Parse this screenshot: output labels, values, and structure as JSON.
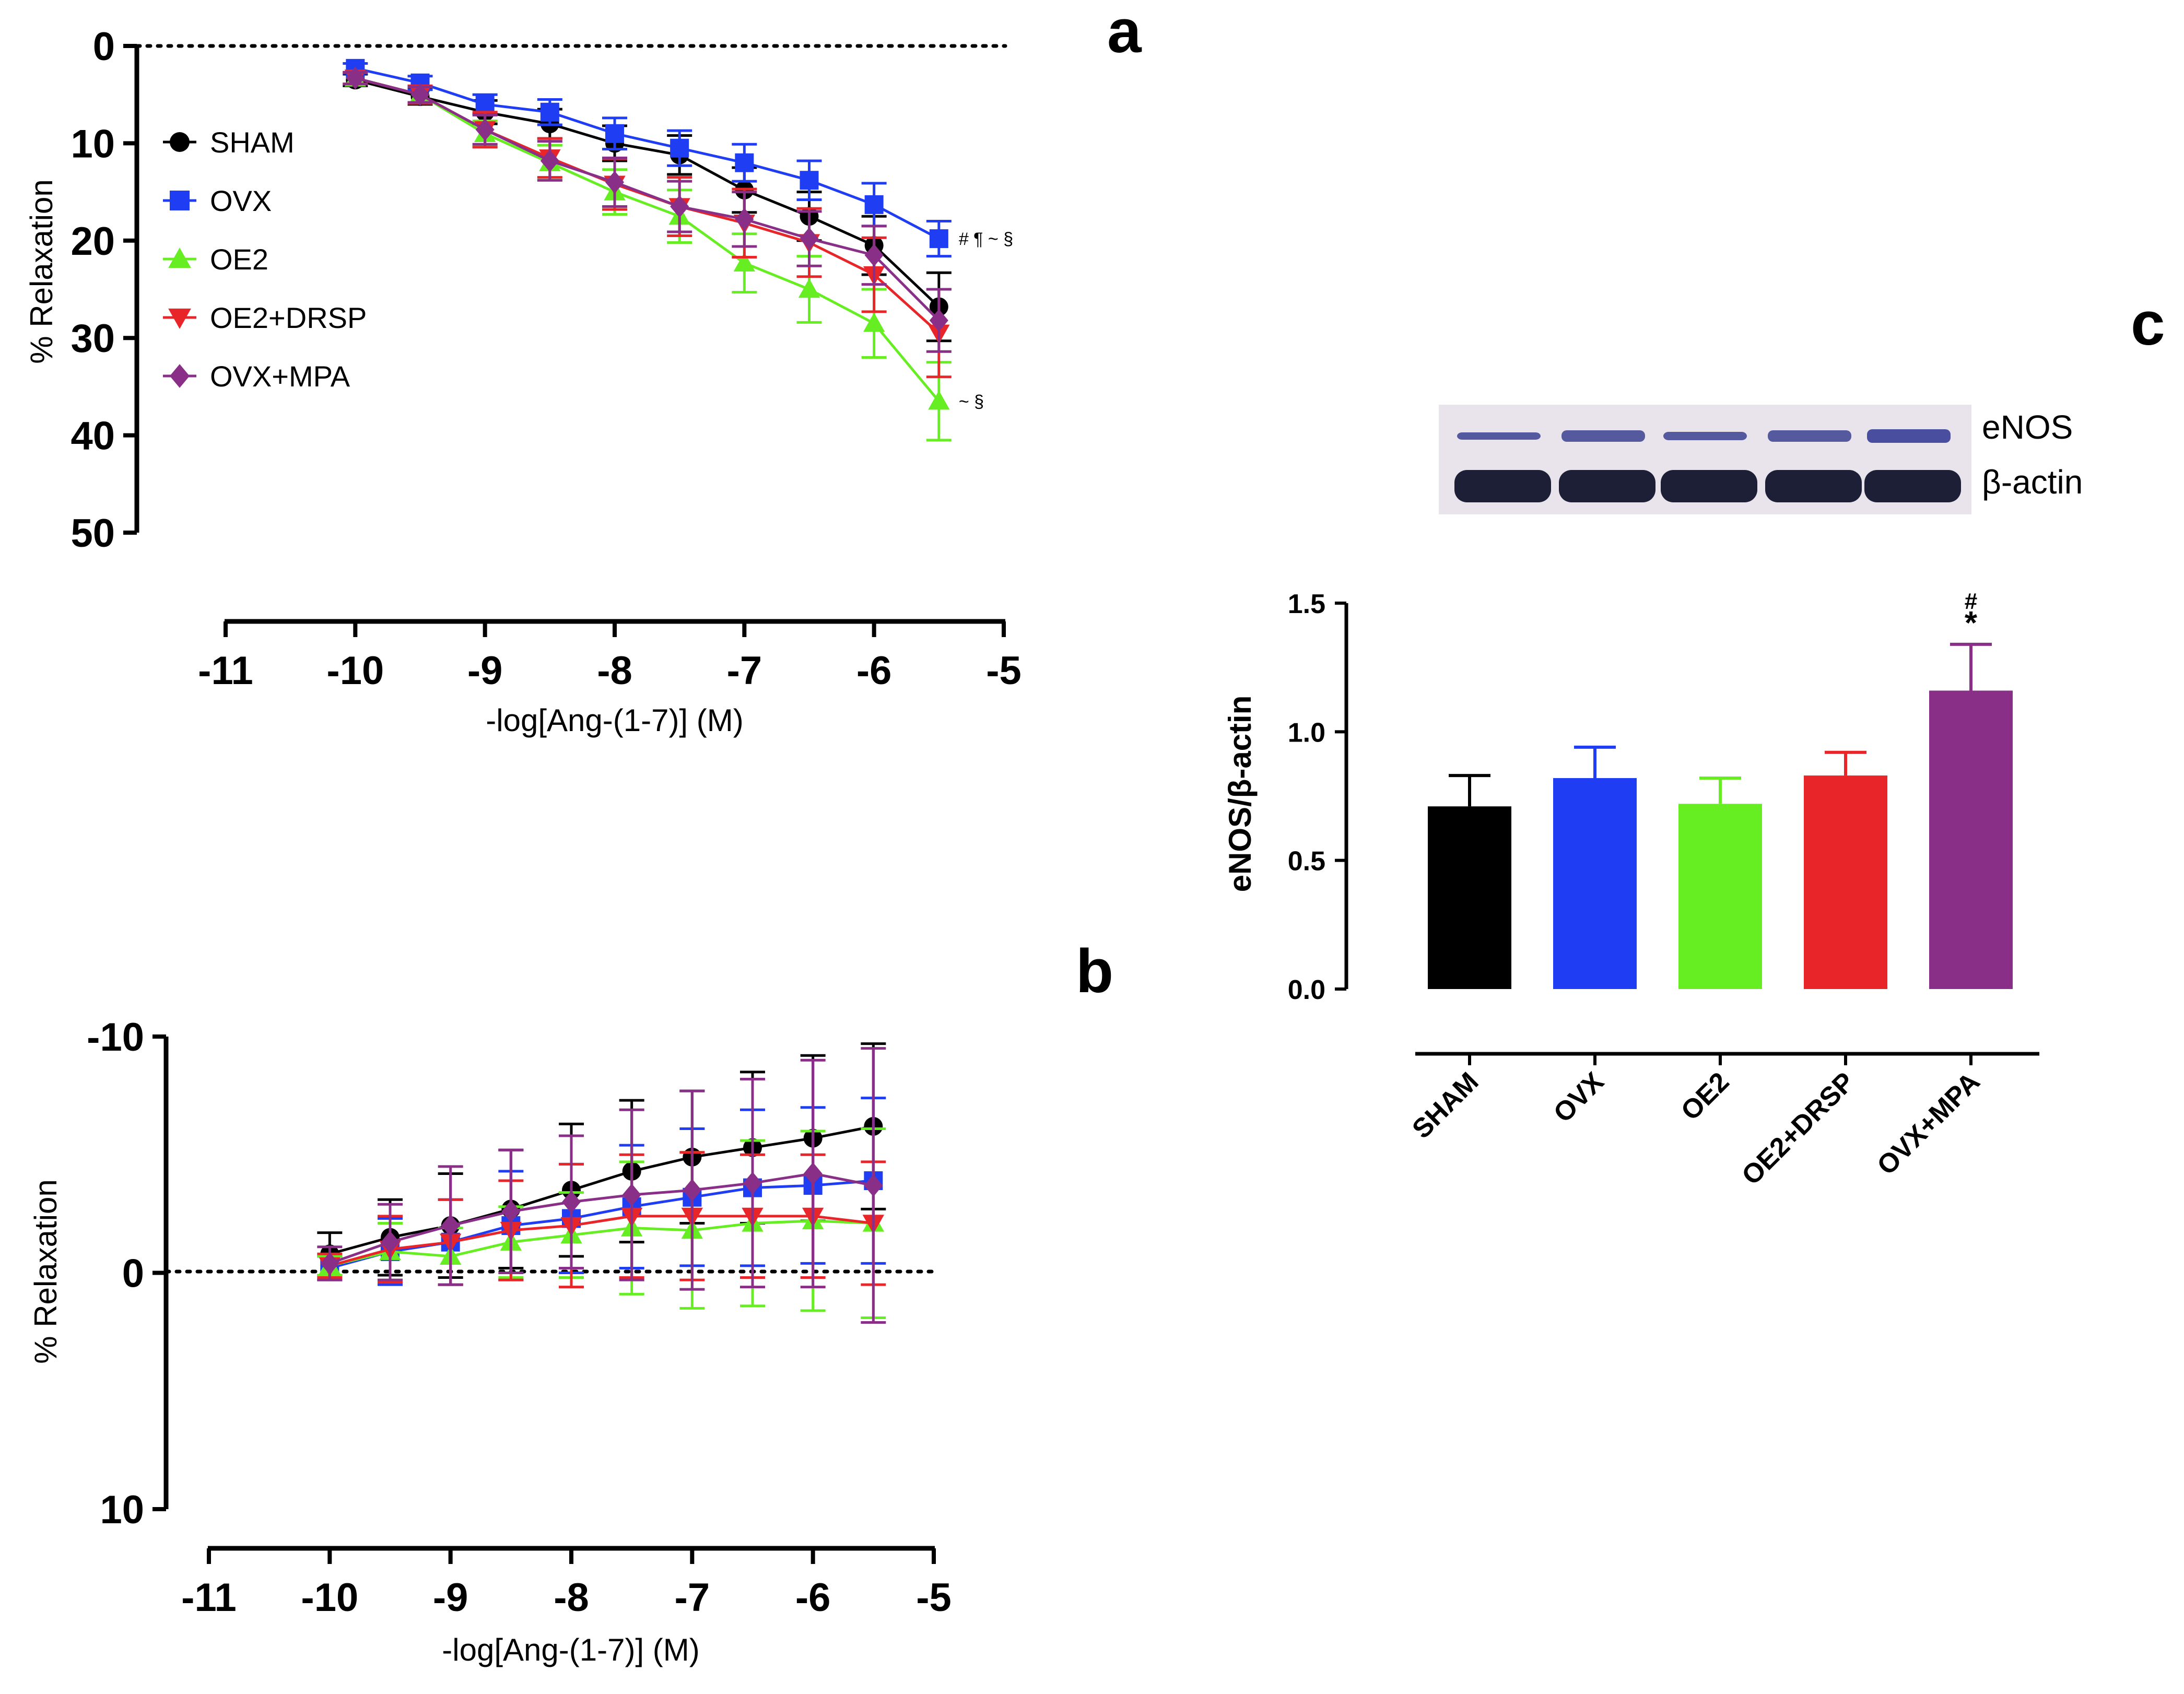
{
  "chart_data": [
    {
      "panel": "a",
      "type": "line",
      "xlabel": "-log[Ang-(1-7)] (M)",
      "ylabel": "% Relaxation",
      "xlim": [
        -11,
        -5
      ],
      "ylim": [
        0,
        50
      ],
      "y_inverted": true,
      "xticks": [
        "-11",
        "-10",
        "-9",
        "-8",
        "-7",
        "-6",
        "-5"
      ],
      "yticks": [
        "0",
        "10",
        "20",
        "30",
        "40",
        "50"
      ],
      "reference_line_y": 0,
      "x": [
        -10,
        -9.5,
        -9,
        -8.5,
        -8,
        -7.5,
        -7,
        -6.5,
        -6,
        -5.5
      ],
      "series": [
        {
          "name": "SHAM",
          "color": "#000000",
          "marker": "circle",
          "values": [
            3.5,
            5.2,
            6.8,
            8.0,
            10.0,
            11.2,
            14.8,
            17.5,
            20.5,
            26.8
          ],
          "errors": [
            0.6,
            0.8,
            1.2,
            1.5,
            1.8,
            2.0,
            2.3,
            2.5,
            3.0,
            3.5
          ]
        },
        {
          "name": "OVX",
          "color": "#1f3df2",
          "marker": "square",
          "values": [
            2.3,
            3.8,
            6.0,
            6.8,
            9.0,
            10.5,
            12.0,
            13.8,
            16.3,
            19.8
          ],
          "errors": [
            0.5,
            0.7,
            1.0,
            1.3,
            1.6,
            1.8,
            1.9,
            2.0,
            2.2,
            1.8
          ]
        },
        {
          "name": "OE2",
          "color": "#66ee22",
          "marker": "triangle-up",
          "values": [
            3.3,
            5.0,
            9.0,
            12.0,
            15.0,
            17.5,
            22.3,
            25.0,
            28.5,
            36.5
          ],
          "errors": [
            0.6,
            0.8,
            1.3,
            1.8,
            2.3,
            2.7,
            3.0,
            3.4,
            3.5,
            4.0
          ]
        },
        {
          "name": "OE2+DRSP",
          "color": "#e8262a",
          "marker": "triangle-down",
          "values": [
            3.3,
            5.0,
            8.6,
            11.5,
            14.2,
            16.5,
            18.2,
            20.2,
            23.5,
            29.5
          ],
          "errors": [
            0.6,
            0.9,
            1.8,
            2.0,
            2.6,
            3.0,
            3.5,
            3.5,
            3.8,
            4.5
          ]
        },
        {
          "name": "OVX+MPA",
          "color": "#8a2f88",
          "marker": "diamond",
          "values": [
            3.3,
            5.0,
            8.6,
            11.8,
            14.0,
            16.5,
            17.8,
            19.8,
            21.5,
            28.2
          ],
          "errors": [
            0.6,
            0.8,
            1.5,
            2.0,
            2.5,
            2.6,
            2.8,
            2.8,
            3.0,
            3.2
          ]
        }
      ],
      "annotations": [
        {
          "text": "# ¶ ~ §",
          "series": "OVX",
          "x": -5.5
        },
        {
          "text": "~ §",
          "series": "OE2",
          "x": -5.5
        }
      ]
    },
    {
      "panel": "b",
      "type": "line",
      "xlabel": "-log[Ang-(1-7)] (M)",
      "ylabel": "% Relaxation",
      "xlim": [
        -11,
        -5
      ],
      "ylim": [
        10,
        -10
      ],
      "xticks": [
        "-11",
        "-10",
        "-9",
        "-8",
        "-7",
        "-6",
        "-5"
      ],
      "yticks": [
        "-10",
        "0",
        "10"
      ],
      "reference_line_y": 0,
      "x": [
        -10,
        -9.5,
        -9,
        -8.5,
        -8,
        -7.5,
        -7,
        -6.5,
        -6,
        -5.5
      ],
      "series": [
        {
          "name": "SHAM",
          "color": "#000000",
          "marker": "circle",
          "values": [
            -0.8,
            -1.5,
            -2.0,
            -2.7,
            -3.5,
            -4.3,
            -4.9,
            -5.3,
            -5.7,
            -6.2
          ],
          "errors": [
            0.9,
            1.6,
            2.2,
            2.5,
            2.8,
            3.0,
            2.8,
            3.2,
            3.5,
            3.5
          ]
        },
        {
          "name": "OVX",
          "color": "#1f3df2",
          "marker": "square",
          "values": [
            -0.2,
            -0.9,
            -1.3,
            -2.0,
            -2.3,
            -2.8,
            -3.2,
            -3.6,
            -3.7,
            -3.9
          ],
          "errors": [
            0.5,
            1.4,
            1.8,
            2.3,
            2.3,
            2.6,
            2.9,
            3.3,
            3.3,
            3.5
          ]
        },
        {
          "name": "OE2",
          "color": "#66ee22",
          "marker": "triangle-up",
          "values": [
            -0.3,
            -0.9,
            -0.7,
            -1.3,
            -1.6,
            -1.9,
            -1.8,
            -2.1,
            -2.2,
            -2.1
          ],
          "errors": [
            0.4,
            1.2,
            1.2,
            1.5,
            1.8,
            2.8,
            3.3,
            3.5,
            3.8,
            4.0
          ]
        },
        {
          "name": "OE2+DRSP",
          "color": "#e8262a",
          "marker": "triangle-down",
          "values": [
            -0.3,
            -1.0,
            -1.3,
            -1.8,
            -2.0,
            -2.4,
            -2.4,
            -2.4,
            -2.4,
            -2.1
          ],
          "errors": [
            0.5,
            1.4,
            1.8,
            2.1,
            2.6,
            2.6,
            2.7,
            2.6,
            2.6,
            2.6
          ]
        },
        {
          "name": "OVX+MPA",
          "color": "#8a2f88",
          "marker": "diamond",
          "values": [
            -0.4,
            -1.3,
            -2.0,
            -2.6,
            -3.0,
            -3.3,
            -3.5,
            -3.8,
            -4.2,
            -3.7
          ],
          "errors": [
            0.7,
            1.6,
            2.5,
            2.6,
            2.8,
            3.6,
            4.2,
            4.4,
            4.8,
            5.8
          ]
        }
      ]
    },
    {
      "panel": "c",
      "type": "bar",
      "ylabel": "eNOS/β-actin",
      "ylim": [
        0,
        1.5
      ],
      "yticks": [
        "0.0",
        "0.5",
        "1.0",
        "1.5"
      ],
      "categories": [
        "SHAM",
        "OVX",
        "OE2",
        "OE2+DRSP",
        "OVX+MPA"
      ],
      "values": [
        0.71,
        0.82,
        0.72,
        0.83,
        1.16
      ],
      "errors": [
        0.12,
        0.12,
        0.1,
        0.09,
        0.18
      ],
      "colors": [
        "#000000",
        "#1f3df2",
        "#66ee22",
        "#e8262a",
        "#8a2f88"
      ],
      "significance": [
        {
          "category": "OVX+MPA",
          "marks": [
            "#",
            "*"
          ]
        }
      ],
      "blot_labels": [
        "eNOS",
        "β-actin"
      ]
    }
  ]
}
